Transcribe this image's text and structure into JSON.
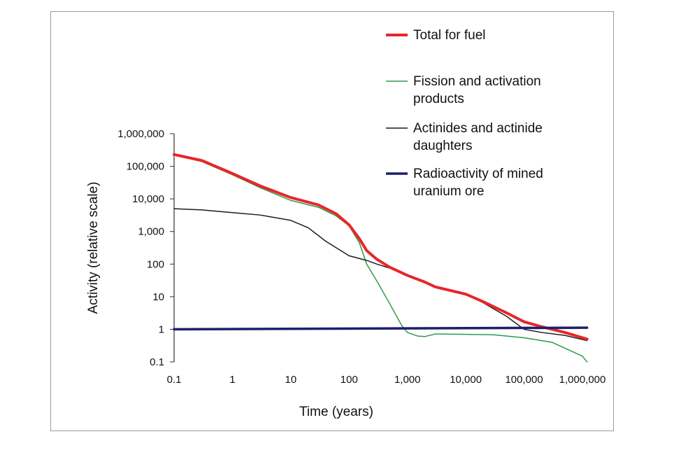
{
  "chart_data": {
    "type": "line",
    "xlabel": "Time (years)",
    "ylabel": "Activity (relative scale)",
    "xscale": "log",
    "yscale": "log",
    "xlim": [
      0.1,
      1000000
    ],
    "ylim": [
      0.1,
      1000000
    ],
    "grid": false,
    "legend_position": "top-right",
    "x_ticks": [
      {
        "value": 0.1,
        "label": "0.1"
      },
      {
        "value": 1,
        "label": "1"
      },
      {
        "value": 10,
        "label": "10"
      },
      {
        "value": 100,
        "label": "100"
      },
      {
        "value": 1000,
        "label": "1,000"
      },
      {
        "value": 10000,
        "label": "10,000"
      },
      {
        "value": 100000,
        "label": "100,000"
      },
      {
        "value": 1000000,
        "label": "1,000,000"
      }
    ],
    "y_ticks": [
      {
        "value": 0.1,
        "label": "0.1"
      },
      {
        "value": 1,
        "label": "1"
      },
      {
        "value": 10,
        "label": "10"
      },
      {
        "value": 100,
        "label": "100"
      },
      {
        "value": 1000,
        "label": "1,000"
      },
      {
        "value": 10000,
        "label": "10,000"
      },
      {
        "value": 100000,
        "label": "100,000"
      },
      {
        "value": 1000000,
        "label": "1,000,000"
      }
    ],
    "series": [
      {
        "name": "Total for fuel",
        "name_lines": [
          "Total for fuel"
        ],
        "color": "#e8262a",
        "width": 4,
        "points": [
          [
            0.1,
            230000
          ],
          [
            0.3,
            150000
          ],
          [
            1,
            60000
          ],
          [
            3,
            25000
          ],
          [
            10,
            11000
          ],
          [
            30,
            6500
          ],
          [
            60,
            3500
          ],
          [
            100,
            1600
          ],
          [
            150,
            600
          ],
          [
            200,
            260
          ],
          [
            300,
            140
          ],
          [
            500,
            80
          ],
          [
            1000,
            45
          ],
          [
            2000,
            28
          ],
          [
            3000,
            20
          ],
          [
            10000,
            12
          ],
          [
            20000,
            7
          ],
          [
            50000,
            3.2
          ],
          [
            100000,
            1.7
          ],
          [
            200000,
            1.2
          ],
          [
            500000,
            0.8
          ],
          [
            1200000,
            0.5
          ]
        ]
      },
      {
        "name": "Fission and activation products",
        "name_lines": [
          "Fission and activation",
          "products"
        ],
        "color": "#2e9a48",
        "width": 1.5,
        "points": [
          [
            0.1,
            220000
          ],
          [
            0.3,
            140000
          ],
          [
            1,
            55000
          ],
          [
            3,
            22000
          ],
          [
            10,
            9000
          ],
          [
            30,
            5500
          ],
          [
            60,
            3000
          ],
          [
            100,
            1500
          ],
          [
            150,
            450
          ],
          [
            200,
            100
          ],
          [
            300,
            30
          ],
          [
            500,
            6
          ],
          [
            800,
            1.3
          ],
          [
            1000,
            0.8
          ],
          [
            1500,
            0.62
          ],
          [
            2000,
            0.6
          ],
          [
            3000,
            0.72
          ],
          [
            10000,
            0.7
          ],
          [
            30000,
            0.68
          ],
          [
            100000,
            0.55
          ],
          [
            300000,
            0.4
          ],
          [
            1000000,
            0.15
          ],
          [
            1200000,
            0.1
          ]
        ]
      },
      {
        "name": "Actinides and actinide daughters",
        "name_lines": [
          "Actinides and actinide",
          "daughters"
        ],
        "color": "#1c1c1c",
        "width": 1.5,
        "points": [
          [
            0.1,
            5000
          ],
          [
            0.3,
            4600
          ],
          [
            1,
            3800
          ],
          [
            3,
            3200
          ],
          [
            10,
            2200
          ],
          [
            20,
            1300
          ],
          [
            40,
            500
          ],
          [
            100,
            180
          ],
          [
            200,
            130
          ],
          [
            300,
            100
          ],
          [
            500,
            75
          ],
          [
            1000,
            45
          ],
          [
            2000,
            28
          ],
          [
            3000,
            20
          ],
          [
            10000,
            12
          ],
          [
            20000,
            6.5
          ],
          [
            50000,
            2.5
          ],
          [
            100000,
            1.0
          ],
          [
            200000,
            0.8
          ],
          [
            500000,
            0.65
          ],
          [
            1200000,
            0.45
          ]
        ]
      },
      {
        "name": "Radioactivity of mined uranium ore",
        "name_lines": [
          "Radioactivity of mined",
          "uranium ore"
        ],
        "color": "#1f1e6e",
        "width": 3.5,
        "points": [
          [
            0.1,
            1
          ],
          [
            1200000,
            1.12
          ]
        ]
      }
    ]
  }
}
